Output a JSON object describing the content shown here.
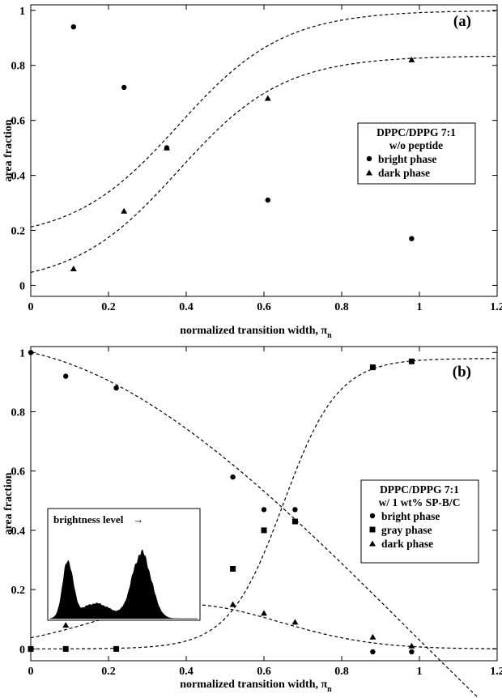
{
  "chart_data": [
    {
      "type": "scatter",
      "panel_label": "(a)",
      "xlabel": "normalized transition width, π",
      "xlabel_sub": "n",
      "ylabel": "area fraction",
      "xlim": [
        0,
        1.2
      ],
      "ylim": [
        -0.04,
        1.02
      ],
      "x_ticks": [
        0,
        0.2,
        0.4,
        0.6,
        0.8,
        1,
        1.2
      ],
      "y_ticks": [
        0,
        0.2,
        0.4,
        0.6,
        0.8,
        1
      ],
      "legend": {
        "placement": "right",
        "title_lines": [
          "DPPC/DPPG 7:1",
          "w/o peptide"
        ]
      },
      "series": [
        {
          "name": "bright phase",
          "marker": "circle",
          "x": [
            0.11,
            0.24,
            0.35,
            0.61,
            0.98
          ],
          "y": [
            0.94,
            0.72,
            0.5,
            0.31,
            0.17
          ]
        },
        {
          "name": "dark phase",
          "marker": "triangle",
          "x": [
            0.11,
            0.24,
            0.35,
            0.61,
            0.98
          ],
          "y": [
            0.06,
            0.27,
            0.5,
            0.68,
            0.82
          ]
        }
      ],
      "fit_curves": [
        {
          "series": "bright phase",
          "style": "dashed",
          "form": "sigmoid",
          "low": 0.165,
          "high": 1.0,
          "center": 0.38,
          "width": 0.135
        },
        {
          "series": "dark phase",
          "style": "dashed",
          "form": "sigmoid",
          "low": 0.0,
          "high": 0.835,
          "center": 0.38,
          "width": 0.135
        }
      ]
    },
    {
      "type": "scatter",
      "panel_label": "(b)",
      "xlabel": "normalized transition width, π",
      "xlabel_sub": "n",
      "ylabel": "area fraction",
      "xlim": [
        0,
        1.2
      ],
      "ylim": [
        -0.04,
        1.02
      ],
      "x_ticks": [
        0,
        0.2,
        0.4,
        0.6,
        0.8,
        1,
        1.2
      ],
      "y_ticks": [
        0,
        0.2,
        0.4,
        0.6,
        0.8,
        1
      ],
      "legend": {
        "placement": "right",
        "title_lines": [
          "DPPC/DPPG 7:1",
          "w/ 1 wt% SP-B/C"
        ]
      },
      "series": [
        {
          "name": "bright phase",
          "marker": "circle",
          "x": [
            0,
            0.09,
            0.22,
            0.52,
            0.6,
            0.68,
            0.88,
            0.98
          ],
          "y": [
            1.0,
            0.92,
            0.88,
            0.58,
            0.47,
            0.47,
            -0.01,
            -0.01
          ]
        },
        {
          "name": "gray phase",
          "marker": "square",
          "x": [
            0,
            0.09,
            0.22,
            0.52,
            0.6,
            0.68,
            0.88,
            0.98
          ],
          "y": [
            0.0,
            0.0,
            0.0,
            0.27,
            0.4,
            0.43,
            0.95,
            0.97
          ]
        },
        {
          "name": "dark phase",
          "marker": "triangle",
          "x": [
            0.09,
            0.22,
            0.52,
            0.6,
            0.68,
            0.88,
            0.98
          ],
          "y": [
            0.08,
            0.12,
            0.15,
            0.12,
            0.09,
            0.04,
            0.01
          ]
        }
      ],
      "fit_curves": [
        {
          "series": "bright phase",
          "style": "dashed",
          "form": "poly",
          "coeffs": [
            1.0,
            -0.28,
            -1.05,
            0.36
          ]
        },
        {
          "series": "gray phase",
          "style": "dashed",
          "form": "sigmoid",
          "low": 0.0,
          "high": 0.98,
          "center": 0.65,
          "width": 0.07
        },
        {
          "series": "dark phase",
          "style": "dashed",
          "form": "gauss",
          "amp": 0.15,
          "center": 0.4,
          "sigma": 0.24
        }
      ],
      "inset": {
        "type": "histogram",
        "label": "brightness level",
        "arrow": "→",
        "profile": [
          {
            "center": 0.12,
            "sigma": 0.035,
            "amp": 0.66
          },
          {
            "center": 0.31,
            "sigma": 0.1,
            "amp": 0.18
          },
          {
            "center": 0.62,
            "sigma": 0.065,
            "amp": 0.78
          }
        ]
      }
    }
  ]
}
